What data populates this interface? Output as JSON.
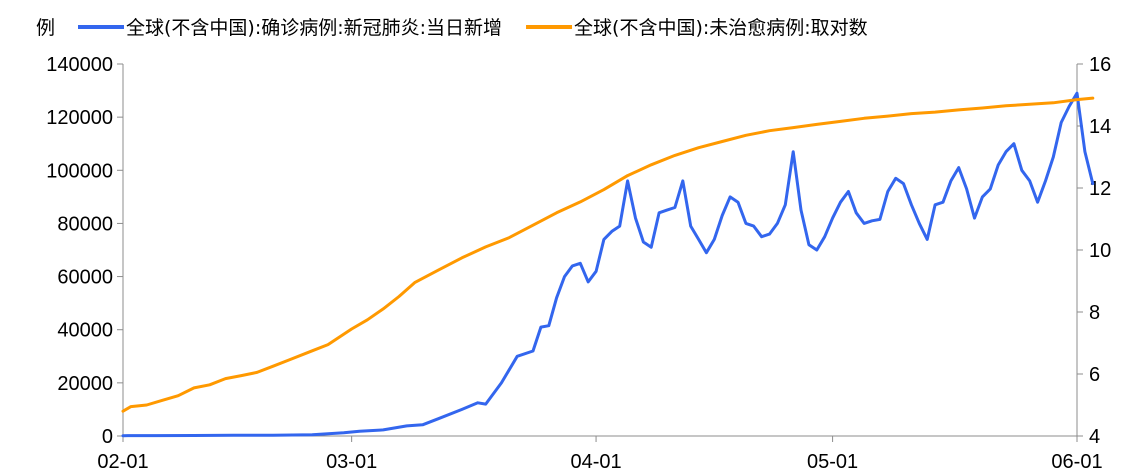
{
  "chart_data": {
    "type": "line",
    "left_axis_unit": "例",
    "ylim_left": [
      0,
      140000
    ],
    "ylim_right": [
      4,
      16
    ],
    "yticks_left": [
      0,
      20000,
      40000,
      60000,
      80000,
      100000,
      120000,
      140000
    ],
    "yticks_right": [
      4,
      6,
      8,
      10,
      12,
      14,
      16
    ],
    "x_tick_labels": [
      "02-01",
      "03-01",
      "04-01",
      "05-01",
      "06-01"
    ],
    "x_tick_dates": [
      "2020-02-01",
      "2020-03-01",
      "2020-04-01",
      "2020-05-01",
      "2020-06-01"
    ],
    "xlim": [
      "2020-02-01",
      "2020-06-01"
    ],
    "grid": false,
    "legend_position": "top",
    "series": [
      {
        "name": "全球(不含中国):确诊病例:新冠肺炎:当日新增",
        "axis": "left",
        "color": "#3366ee",
        "points": [
          [
            "2020-02-01",
            100
          ],
          [
            "2020-02-05",
            150
          ],
          [
            "2020-02-10",
            200
          ],
          [
            "2020-02-15",
            250
          ],
          [
            "2020-02-20",
            300
          ],
          [
            "2020-02-25",
            500
          ],
          [
            "2020-02-29",
            1200
          ],
          [
            "2020-03-02",
            1800
          ],
          [
            "2020-03-05",
            2300
          ],
          [
            "2020-03-08",
            3800
          ],
          [
            "2020-03-10",
            4200
          ],
          [
            "2020-03-12",
            6500
          ],
          [
            "2020-03-15",
            10000
          ],
          [
            "2020-03-17",
            12500
          ],
          [
            "2020-03-18",
            12000
          ],
          [
            "2020-03-20",
            20000
          ],
          [
            "2020-03-22",
            30000
          ],
          [
            "2020-03-24",
            32000
          ],
          [
            "2020-03-25",
            41000
          ],
          [
            "2020-03-26",
            41500
          ],
          [
            "2020-03-27",
            52000
          ],
          [
            "2020-03-28",
            60000
          ],
          [
            "2020-03-29",
            64000
          ],
          [
            "2020-03-30",
            65000
          ],
          [
            "2020-03-31",
            58000
          ],
          [
            "2020-04-01",
            62000
          ],
          [
            "2020-04-02",
            74000
          ],
          [
            "2020-04-03",
            77000
          ],
          [
            "2020-04-04",
            79000
          ],
          [
            "2020-04-05",
            96000
          ],
          [
            "2020-04-06",
            82000
          ],
          [
            "2020-04-07",
            73000
          ],
          [
            "2020-04-08",
            71000
          ],
          [
            "2020-04-09",
            84000
          ],
          [
            "2020-04-10",
            85000
          ],
          [
            "2020-04-11",
            86000
          ],
          [
            "2020-04-12",
            96000
          ],
          [
            "2020-04-13",
            79000
          ],
          [
            "2020-04-14",
            74000
          ],
          [
            "2020-04-15",
            69000
          ],
          [
            "2020-04-16",
            74000
          ],
          [
            "2020-04-17",
            83000
          ],
          [
            "2020-04-18",
            90000
          ],
          [
            "2020-04-19",
            88000
          ],
          [
            "2020-04-20",
            80000
          ],
          [
            "2020-04-21",
            79000
          ],
          [
            "2020-04-22",
            75000
          ],
          [
            "2020-04-23",
            76000
          ],
          [
            "2020-04-24",
            80000
          ],
          [
            "2020-04-25",
            87000
          ],
          [
            "2020-04-26",
            107000
          ],
          [
            "2020-04-27",
            85000
          ],
          [
            "2020-04-28",
            72000
          ],
          [
            "2020-04-29",
            70000
          ],
          [
            "2020-04-30",
            75000
          ],
          [
            "2020-05-01",
            82000
          ],
          [
            "2020-05-02",
            88000
          ],
          [
            "2020-05-03",
            92000
          ],
          [
            "2020-05-04",
            84000
          ],
          [
            "2020-05-05",
            80000
          ],
          [
            "2020-05-06",
            81000
          ],
          [
            "2020-05-07",
            81500
          ],
          [
            "2020-05-08",
            92000
          ],
          [
            "2020-05-09",
            97000
          ],
          [
            "2020-05-10",
            95000
          ],
          [
            "2020-05-11",
            87000
          ],
          [
            "2020-05-12",
            80000
          ],
          [
            "2020-05-13",
            74000
          ],
          [
            "2020-05-14",
            87000
          ],
          [
            "2020-05-15",
            88000
          ],
          [
            "2020-05-16",
            96000
          ],
          [
            "2020-05-17",
            101000
          ],
          [
            "2020-05-18",
            93000
          ],
          [
            "2020-05-19",
            82000
          ],
          [
            "2020-05-20",
            90000
          ],
          [
            "2020-05-21",
            93000
          ],
          [
            "2020-05-22",
            102000
          ],
          [
            "2020-05-23",
            107000
          ],
          [
            "2020-05-24",
            110000
          ],
          [
            "2020-05-25",
            100000
          ],
          [
            "2020-05-26",
            96000
          ],
          [
            "2020-05-27",
            88000
          ],
          [
            "2020-05-28",
            96000
          ],
          [
            "2020-05-29",
            105000
          ],
          [
            "2020-05-30",
            118000
          ],
          [
            "2020-05-31",
            124000
          ],
          [
            "2020-06-01",
            129000
          ],
          [
            "2020-06-02",
            107000
          ],
          [
            "2020-06-03",
            95000
          ]
        ]
      },
      {
        "name": "全球(不含中国):未治愈病例:取对数",
        "axis": "right",
        "color": "#ff9900",
        "points": [
          [
            "2020-02-01",
            4.8
          ],
          [
            "2020-02-02",
            4.95
          ],
          [
            "2020-02-04",
            5.0
          ],
          [
            "2020-02-06",
            5.15
          ],
          [
            "2020-02-08",
            5.3
          ],
          [
            "2020-02-10",
            5.55
          ],
          [
            "2020-02-12",
            5.65
          ],
          [
            "2020-02-14",
            5.85
          ],
          [
            "2020-02-16",
            5.95
          ],
          [
            "2020-02-18",
            6.05
          ],
          [
            "2020-02-20",
            6.25
          ],
          [
            "2020-02-22",
            6.45
          ],
          [
            "2020-02-25",
            6.75
          ],
          [
            "2020-02-27",
            6.95
          ],
          [
            "2020-03-01",
            7.45
          ],
          [
            "2020-03-03",
            7.75
          ],
          [
            "2020-03-05",
            8.1
          ],
          [
            "2020-03-07",
            8.5
          ],
          [
            "2020-03-09",
            8.95
          ],
          [
            "2020-03-12",
            9.35
          ],
          [
            "2020-03-15",
            9.75
          ],
          [
            "2020-03-18",
            10.1
          ],
          [
            "2020-03-21",
            10.4
          ],
          [
            "2020-03-24",
            10.8
          ],
          [
            "2020-03-27",
            11.2
          ],
          [
            "2020-03-30",
            11.55
          ],
          [
            "2020-04-02",
            11.95
          ],
          [
            "2020-04-05",
            12.4
          ],
          [
            "2020-04-08",
            12.75
          ],
          [
            "2020-04-11",
            13.05
          ],
          [
            "2020-04-14",
            13.3
          ],
          [
            "2020-04-17",
            13.5
          ],
          [
            "2020-04-20",
            13.7
          ],
          [
            "2020-04-23",
            13.85
          ],
          [
            "2020-04-26",
            13.95
          ],
          [
            "2020-04-29",
            14.05
          ],
          [
            "2020-05-02",
            14.15
          ],
          [
            "2020-05-05",
            14.25
          ],
          [
            "2020-05-08",
            14.32
          ],
          [
            "2020-05-11",
            14.4
          ],
          [
            "2020-05-14",
            14.45
          ],
          [
            "2020-05-17",
            14.52
          ],
          [
            "2020-05-20",
            14.58
          ],
          [
            "2020-05-23",
            14.65
          ],
          [
            "2020-05-26",
            14.7
          ],
          [
            "2020-05-29",
            14.75
          ],
          [
            "2020-06-01",
            14.85
          ],
          [
            "2020-06-03",
            14.9
          ]
        ]
      }
    ]
  }
}
